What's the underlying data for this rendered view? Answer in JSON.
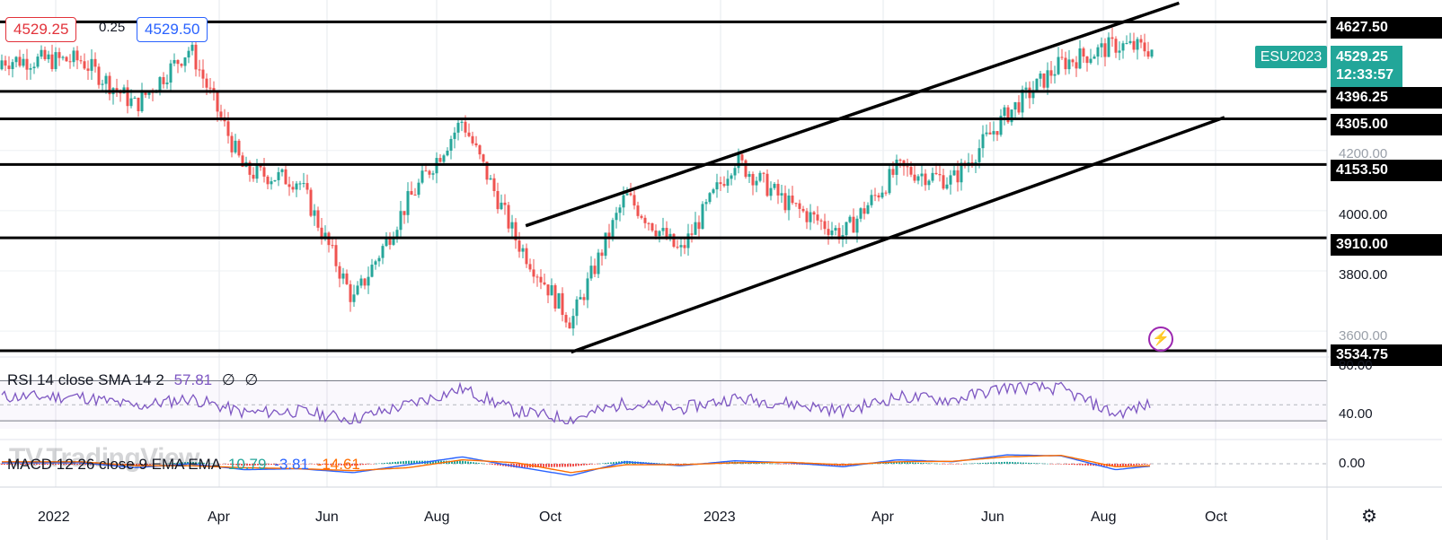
{
  "header": {
    "bid_price": "4529.25",
    "spread": "0.25",
    "ask_price": "4529.50",
    "bid_color": "#e2323a",
    "ask_color": "#2962ff"
  },
  "symbol": {
    "ticker": "ESU2023",
    "last_price": "4529.25",
    "countdown": "12:33:57",
    "tag_color": "#22a699"
  },
  "price_axis": {
    "level_tags": [
      "4627.50",
      "4396.25",
      "4305.00",
      "4153.50",
      "3910.00",
      "3534.75"
    ],
    "tick_labels": [
      "4200.00",
      "4000.00",
      "3800.00",
      "3600.00"
    ]
  },
  "rsi": {
    "legend_name": "RSI 14 close SMA 14 2",
    "legend_value": "57.81",
    "legend_extra_1": "∅",
    "legend_extra_2": "∅",
    "axis_labels": [
      "80.00",
      "40.00"
    ],
    "color": "#7e57c2"
  },
  "macd": {
    "legend_name": "MACD 12 26 close 9 EMA EMA",
    "value_hist": "10.79",
    "value_macd": "-3.81",
    "value_signal": "-14.61",
    "axis_label": "0.00",
    "macd_color": "#2962ff",
    "signal_color": "#ff6d00"
  },
  "time_axis": [
    "2022",
    "Apr",
    "Jun",
    "Aug",
    "Oct",
    "2023",
    "Apr",
    "Jun",
    "Aug",
    "Oct"
  ],
  "watermark": "TradingView",
  "icons": [
    "lightning-icon",
    "settings-icon"
  ],
  "chart_data": {
    "type": "candlestick",
    "instrument": "ESU2023",
    "x": [
      "2022-01",
      "2022-02",
      "2022-03",
      "2022-04",
      "2022-05",
      "2022-06",
      "2022-07",
      "2022-08",
      "2022-09",
      "2022-10",
      "2022-11",
      "2022-12",
      "2023-01",
      "2023-02",
      "2023-03",
      "2023-04",
      "2023-05",
      "2023-06",
      "2023-07",
      "2023-08",
      "2023-09"
    ],
    "close": [
      4500,
      4350,
      4540,
      4130,
      4100,
      3700,
      4030,
      4300,
      3900,
      3630,
      4050,
      3860,
      4170,
      4020,
      3920,
      4140,
      4100,
      4320,
      4490,
      4550,
      4529.25
    ],
    "horizontal_levels": [
      4627.5,
      4396.25,
      4305.0,
      4153.5,
      3910.0,
      3534.75
    ],
    "channel": {
      "upper": [
        {
          "x": "2022-09-20",
          "y": 3950
        },
        {
          "x": "2023-09-20",
          "y": 4690
        }
      ],
      "lower": [
        {
          "x": "2022-10-15",
          "y": 3530
        },
        {
          "x": "2023-10-15",
          "y": 4310
        }
      ]
    },
    "y_range": [
      3520,
      4700
    ],
    "rsi_series": [
      60,
      48,
      58,
      40,
      42,
      32,
      50,
      70,
      42,
      32,
      52,
      45,
      58,
      52,
      42,
      60,
      56,
      72,
      70,
      38,
      57.81
    ],
    "rsi_range": [
      20,
      85
    ],
    "macd_series": [
      10,
      -40,
      0,
      -60,
      -50,
      -90,
      -10,
      70,
      -30,
      -120,
      20,
      -20,
      30,
      10,
      -30,
      40,
      20,
      90,
      80,
      -60,
      -3.81
    ],
    "signal_series": [
      20,
      -20,
      -20,
      -40,
      -50,
      -70,
      -40,
      40,
      10,
      -90,
      -10,
      -10,
      10,
      15,
      -10,
      20,
      25,
      70,
      85,
      -30,
      -14.61
    ]
  }
}
